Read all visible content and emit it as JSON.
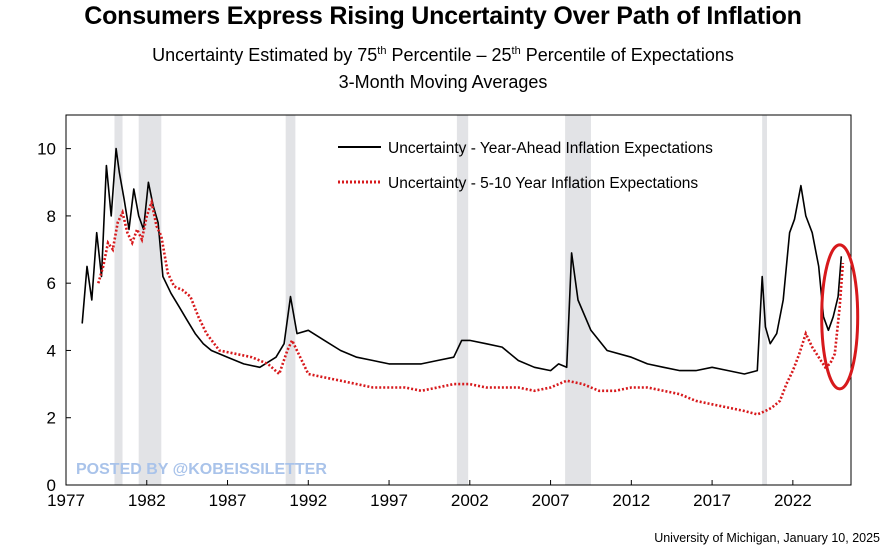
{
  "title": "Consumers Express Rising Uncertainty Over Path of Inflation",
  "subtitle": {
    "pre": "Uncertainty Estimated by 75",
    "sup1": "th",
    "mid": " Percentile – 25",
    "sup2": "th",
    "post": " Percentile of Expectations",
    "line2": "3-Month Moving Averages"
  },
  "watermark": "POSTED BY @KOBEISSILETTER",
  "source": "University of Michigan, January 10, 2025",
  "colors": {
    "year_ahead": "#000000",
    "five_ten": "#d7191c",
    "recession": "#e2e3e6",
    "highlight_ellipse": "#d7191c",
    "watermark": "#a9c3ea"
  },
  "chart_data": {
    "type": "line",
    "xlabel": "",
    "ylabel": "",
    "xlim": [
      1977,
      2025.6
    ],
    "ylim": [
      0,
      11
    ],
    "x_ticks": [
      "1977",
      "1982",
      "1987",
      "1992",
      "1997",
      "2002",
      "2007",
      "2012",
      "2017",
      "2022"
    ],
    "x_tick_values": [
      1977,
      1982,
      1987,
      1992,
      1997,
      2002,
      2007,
      2012,
      2017,
      2022
    ],
    "y_ticks": [
      "0",
      "2",
      "4",
      "6",
      "8",
      "10"
    ],
    "y_tick_values": [
      0,
      2,
      4,
      6,
      8,
      10
    ],
    "grid": false,
    "legend_position": "top-right",
    "recessions": [
      [
        1980.0,
        1980.5
      ],
      [
        1981.5,
        1982.9
      ],
      [
        1990.6,
        1991.2
      ],
      [
        2001.2,
        2001.9
      ],
      [
        2007.9,
        2009.5
      ],
      [
        2020.1,
        2020.4
      ]
    ],
    "highlight": {
      "x": 2024.9,
      "y": 5.0
    },
    "series": [
      {
        "name": "Uncertainty - Year-Ahead Inflation Expectations",
        "style": "solid",
        "x": [
          1978.0,
          1978.3,
          1978.6,
          1978.9,
          1979.2,
          1979.5,
          1979.8,
          1980.1,
          1980.3,
          1980.6,
          1980.9,
          1981.2,
          1981.5,
          1981.8,
          1982.1,
          1982.4,
          1982.7,
          1983.0,
          1983.5,
          1984.0,
          1984.5,
          1985.0,
          1985.5,
          1986.0,
          1987.0,
          1988.0,
          1989.0,
          1990.0,
          1990.5,
          1990.9,
          1991.3,
          1992.0,
          1993.0,
          1994.0,
          1995.0,
          1996.0,
          1997.0,
          1998.0,
          1999.0,
          2000.0,
          2001.0,
          2001.5,
          2002.0,
          2003.0,
          2004.0,
          2005.0,
          2006.0,
          2007.0,
          2007.5,
          2008.0,
          2008.3,
          2008.7,
          2009.5,
          2010.5,
          2012.0,
          2013.0,
          2014.0,
          2015.0,
          2016.0,
          2017.0,
          2018.0,
          2019.0,
          2019.8,
          2020.1,
          2020.3,
          2020.6,
          2021.0,
          2021.4,
          2021.8,
          2022.1,
          2022.5,
          2022.8,
          2023.2,
          2023.6,
          2023.9,
          2024.2,
          2024.5,
          2024.8,
          2025.0
        ],
        "values": [
          4.8,
          6.5,
          5.5,
          7.5,
          6.2,
          9.5,
          8.0,
          10.0,
          9.3,
          8.5,
          7.6,
          8.8,
          8.0,
          7.6,
          9.0,
          8.3,
          7.8,
          6.2,
          5.7,
          5.3,
          4.9,
          4.5,
          4.2,
          4.0,
          3.8,
          3.6,
          3.5,
          3.8,
          4.2,
          5.6,
          4.5,
          4.6,
          4.3,
          4.0,
          3.8,
          3.7,
          3.6,
          3.6,
          3.6,
          3.7,
          3.8,
          4.3,
          4.3,
          4.2,
          4.1,
          3.7,
          3.5,
          3.4,
          3.6,
          3.5,
          6.9,
          5.5,
          4.6,
          4.0,
          3.8,
          3.6,
          3.5,
          3.4,
          3.4,
          3.5,
          3.4,
          3.3,
          3.4,
          6.2,
          4.7,
          4.2,
          4.5,
          5.5,
          7.5,
          7.9,
          8.9,
          8.0,
          7.5,
          6.5,
          5.0,
          4.6,
          5.0,
          5.6,
          6.8
        ]
      },
      {
        "name": "Uncertainty - 5-10 Year Inflation Expectations",
        "style": "dotted",
        "x": [
          1979.0,
          1979.3,
          1979.6,
          1979.9,
          1980.2,
          1980.5,
          1980.8,
          1981.1,
          1981.4,
          1981.7,
          1982.0,
          1982.3,
          1982.6,
          1982.9,
          1983.3,
          1983.7,
          1984.2,
          1984.7,
          1985.2,
          1985.7,
          1986.5,
          1987.5,
          1988.5,
          1989.5,
          1990.2,
          1990.7,
          1991.0,
          1991.5,
          1992.0,
          1993.0,
          1994.0,
          1995.0,
          1996.0,
          1997.0,
          1998.0,
          1999.0,
          2000.0,
          2001.0,
          2002.0,
          2003.0,
          2004.0,
          2005.0,
          2006.0,
          2007.0,
          2008.0,
          2009.0,
          2010.0,
          2011.0,
          2012.0,
          2013.0,
          2014.0,
          2015.0,
          2016.0,
          2017.0,
          2018.0,
          2019.0,
          2019.8,
          2020.3,
          2020.7,
          2021.2,
          2021.6,
          2022.0,
          2022.4,
          2022.8,
          2023.2,
          2023.6,
          2024.0,
          2024.3,
          2024.6,
          2024.9,
          2025.1
        ],
        "values": [
          6.0,
          6.5,
          7.2,
          7.0,
          7.8,
          8.1,
          7.5,
          7.2,
          7.6,
          7.3,
          8.0,
          8.4,
          7.7,
          7.4,
          6.3,
          5.9,
          5.8,
          5.6,
          5.0,
          4.5,
          4.0,
          3.9,
          3.8,
          3.6,
          3.3,
          4.0,
          4.3,
          3.8,
          3.3,
          3.2,
          3.1,
          3.0,
          2.9,
          2.9,
          2.9,
          2.8,
          2.9,
          3.0,
          3.0,
          2.9,
          2.9,
          2.9,
          2.8,
          2.9,
          3.1,
          3.0,
          2.8,
          2.8,
          2.9,
          2.9,
          2.8,
          2.7,
          2.5,
          2.4,
          2.3,
          2.2,
          2.1,
          2.2,
          2.3,
          2.5,
          3.0,
          3.4,
          3.9,
          4.5,
          4.1,
          3.8,
          3.5,
          3.6,
          3.9,
          5.3,
          6.6
        ]
      }
    ]
  }
}
